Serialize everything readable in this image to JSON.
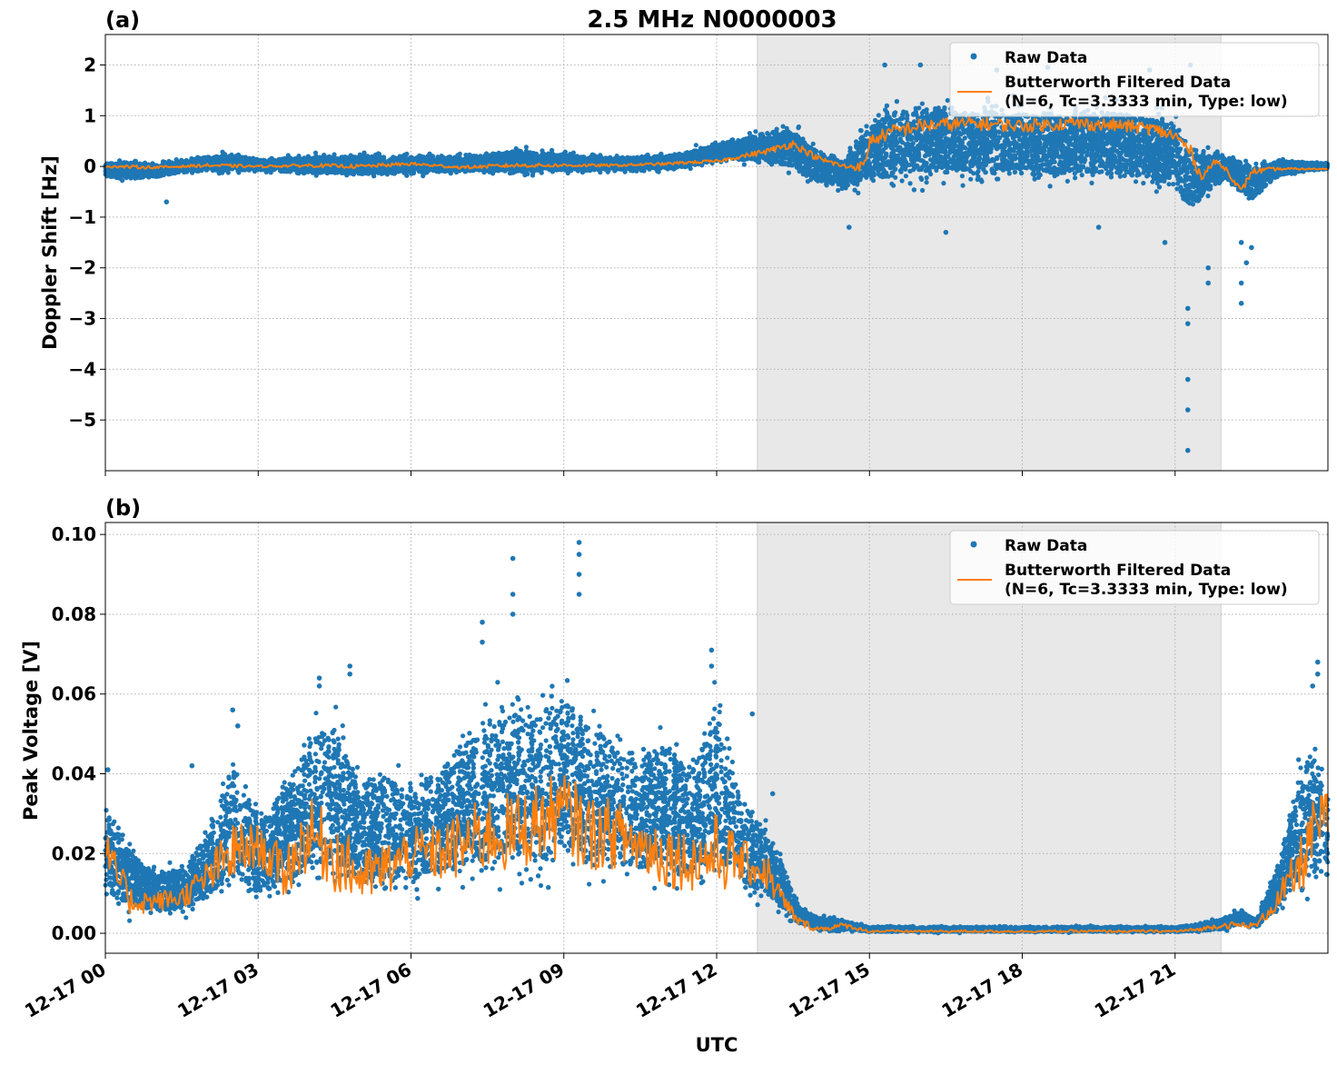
{
  "figure": {
    "title": "2.5 MHz N0000003",
    "xlabel": "UTC"
  },
  "colors": {
    "raw": "#1f77b4",
    "filtered": "#ff7f0e",
    "shade": "#e8e8e8",
    "grid": "#b0b0b0"
  },
  "chart_data": [
    {
      "type": "scatter",
      "panel_label": "(a)",
      "ylabel": "Doppler Shift [Hz]",
      "xlim_hours": [
        0,
        24
      ],
      "x_tick_hours": [
        0,
        3,
        6,
        9,
        12,
        15,
        18,
        21
      ],
      "x_tick_labels": [
        "12-17 00",
        "12-17 03",
        "12-17 06",
        "12-17 09",
        "12-17 12",
        "12-17 15",
        "12-17 18",
        "12-17 21"
      ],
      "ylim": [
        -6,
        2.6
      ],
      "y_ticks": [
        2,
        1,
        0,
        -1,
        -2,
        -3,
        -4,
        -5
      ],
      "y_tick_labels": [
        "2",
        "1",
        "0",
        "−1",
        "−2",
        "−3",
        "−4",
        "−5"
      ],
      "shaded_span_hours": [
        12.8,
        21.9
      ],
      "grid": true,
      "legend_position": "top-right",
      "legend": [
        "Raw Data",
        "Butterworth Filtered Data",
        "(N=6, Tc=3.3333 min, Type: low)"
      ],
      "series": [
        {
          "name": "Raw Data",
          "kind": "points",
          "x": [
            0.0,
            0.5,
            1.0,
            1.5,
            2.0,
            2.5,
            3.0,
            4.0,
            5.0,
            6.0,
            7.0,
            8.0,
            9.0,
            10.0,
            11.0,
            11.5,
            12.0,
            12.5,
            13.0,
            13.5,
            14.0,
            14.5,
            15.0,
            15.5,
            16.0,
            17.0,
            18.0,
            19.0,
            20.0,
            20.5,
            21.0,
            21.3,
            21.6,
            22.0,
            22.5,
            23.0,
            23.5,
            24.0
          ],
          "y_upper": [
            0.15,
            0.2,
            0.12,
            0.2,
            0.3,
            0.35,
            0.2,
            0.3,
            0.35,
            0.3,
            0.3,
            0.45,
            0.35,
            0.25,
            0.3,
            0.4,
            0.55,
            0.7,
            0.9,
            1.0,
            0.5,
            0.3,
            1.3,
            1.6,
            1.7,
            1.6,
            1.5,
            1.6,
            1.5,
            1.4,
            1.3,
            0.9,
            0.5,
            0.35,
            0.3,
            0.2,
            0.15,
            0.1
          ],
          "y_lower": [
            -0.25,
            -0.35,
            -0.3,
            -0.2,
            -0.2,
            -0.2,
            -0.15,
            -0.25,
            -0.3,
            -0.25,
            -0.2,
            -0.25,
            -0.2,
            -0.15,
            -0.15,
            -0.1,
            0.0,
            0.0,
            -0.15,
            -0.3,
            -0.5,
            -0.6,
            -0.7,
            -0.7,
            -0.6,
            -0.6,
            -0.65,
            -0.6,
            -0.6,
            -0.7,
            -0.8,
            -1.3,
            -0.8,
            -0.4,
            -0.9,
            -0.3,
            -0.15,
            -0.1
          ],
          "outliers": [
            [
              14.6,
              -1.2
            ],
            [
              16.5,
              -1.3
            ],
            [
              19.5,
              -1.2
            ],
            [
              20.8,
              -1.5
            ],
            [
              21.25,
              -5.6
            ],
            [
              21.25,
              -4.8
            ],
            [
              21.25,
              -4.2
            ],
            [
              21.25,
              -3.1
            ],
            [
              21.25,
              -2.8
            ],
            [
              21.65,
              -2.3
            ],
            [
              21.65,
              -2.0
            ],
            [
              22.3,
              -2.7
            ],
            [
              22.3,
              -2.3
            ],
            [
              22.4,
              -1.9
            ],
            [
              22.3,
              -1.5
            ],
            [
              22.5,
              -1.6
            ],
            [
              15.3,
              2.0
            ],
            [
              16.0,
              2.0
            ],
            [
              17.5,
              1.9
            ],
            [
              18.5,
              1.95
            ],
            [
              20.5,
              1.9
            ],
            [
              21.3,
              2.0
            ],
            [
              1.2,
              -0.7
            ]
          ]
        },
        {
          "name": "Butterworth Filtered Data",
          "kind": "line",
          "x": [
            0,
            1,
            2,
            3,
            4,
            5,
            6,
            7,
            8,
            9,
            10,
            11,
            11.5,
            12,
            12.5,
            13,
            13.5,
            14,
            14.5,
            14.9,
            15.0,
            15.5,
            16,
            17,
            18,
            19,
            20,
            20.5,
            21.0,
            21.3,
            21.5,
            21.8,
            22.0,
            22.3,
            22.5,
            23,
            24
          ],
          "y": [
            0.0,
            -0.02,
            0.02,
            0.0,
            0.02,
            0.0,
            0.05,
            -0.02,
            0.02,
            0.02,
            0.02,
            0.05,
            0.08,
            0.1,
            0.2,
            0.3,
            0.45,
            0.15,
            0.0,
            0.0,
            0.5,
            0.7,
            0.8,
            0.85,
            0.8,
            0.85,
            0.8,
            0.75,
            0.6,
            0.3,
            -0.2,
            0.1,
            -0.05,
            -0.5,
            -0.1,
            -0.05,
            -0.05
          ]
        }
      ]
    },
    {
      "type": "scatter",
      "panel_label": "(b)",
      "ylabel": "Peak Voltage [V]",
      "xlim_hours": [
        0,
        24
      ],
      "x_tick_hours": [
        0,
        3,
        6,
        9,
        12,
        15,
        18,
        21
      ],
      "x_tick_labels": [
        "12-17 00",
        "12-17 03",
        "12-17 06",
        "12-17 09",
        "12-17 12",
        "12-17 15",
        "12-17 18",
        "12-17 21"
      ],
      "ylim": [
        -0.005,
        0.103
      ],
      "y_ticks": [
        0.1,
        0.08,
        0.06,
        0.04,
        0.02,
        0.0
      ],
      "y_tick_labels": [
        "0.10",
        "0.08",
        "0.06",
        "0.04",
        "0.02",
        "0.00"
      ],
      "shaded_span_hours": [
        12.8,
        21.9
      ],
      "grid": true,
      "legend_position": "top-right",
      "legend": [
        "Raw Data",
        "Butterworth Filtered Data",
        "(N=6, Tc=3.3333 min, Type: low)"
      ],
      "series": [
        {
          "name": "Raw Data",
          "kind": "points",
          "x": [
            0.0,
            0.5,
            1.0,
            1.5,
            2.0,
            2.5,
            3.0,
            3.5,
            4.0,
            4.5,
            5.0,
            5.5,
            6.0,
            6.5,
            7.0,
            7.5,
            8.0,
            8.5,
            9.0,
            9.5,
            10.0,
            10.5,
            11.0,
            11.5,
            12.0,
            12.5,
            13.0,
            13.3,
            13.6,
            14.0,
            14.5,
            15.0,
            16.0,
            18.0,
            20.0,
            21.0,
            21.5,
            22.0,
            22.3,
            22.6,
            23.0,
            23.3,
            23.6,
            24.0
          ],
          "y_upper": [
            0.04,
            0.025,
            0.018,
            0.02,
            0.03,
            0.055,
            0.035,
            0.045,
            0.06,
            0.065,
            0.045,
            0.05,
            0.045,
            0.05,
            0.06,
            0.065,
            0.07,
            0.068,
            0.075,
            0.065,
            0.06,
            0.055,
            0.06,
            0.05,
            0.07,
            0.04,
            0.032,
            0.022,
            0.008,
            0.005,
            0.004,
            0.002,
            0.002,
            0.002,
            0.002,
            0.002,
            0.003,
            0.005,
            0.007,
            0.004,
            0.02,
            0.04,
            0.06,
            0.045
          ],
          "y_lower": [
            0.002,
            0.002,
            0.002,
            0.002,
            0.003,
            0.003,
            0.003,
            0.003,
            0.004,
            0.004,
            0.004,
            0.004,
            0.004,
            0.004,
            0.004,
            0.005,
            0.005,
            0.005,
            0.005,
            0.005,
            0.005,
            0.005,
            0.005,
            0.005,
            0.005,
            0.005,
            0.003,
            0.002,
            0.001,
            0.0,
            0.0,
            0.0,
            0.0,
            0.0,
            0.0,
            0.0,
            0.0,
            0.0,
            0.001,
            0.001,
            0.002,
            0.003,
            0.005,
            0.005
          ],
          "outliers": [
            [
              8.0,
              0.094
            ],
            [
              8.0,
              0.085
            ],
            [
              8.0,
              0.08
            ],
            [
              9.3,
              0.098
            ],
            [
              9.3,
              0.095
            ],
            [
              9.3,
              0.09
            ],
            [
              9.3,
              0.085
            ],
            [
              7.4,
              0.078
            ],
            [
              7.4,
              0.073
            ],
            [
              11.9,
              0.071
            ],
            [
              11.9,
              0.067
            ],
            [
              4.2,
              0.064
            ],
            [
              4.2,
              0.062
            ],
            [
              4.8,
              0.067
            ],
            [
              4.8,
              0.065
            ],
            [
              2.5,
              0.056
            ],
            [
              2.6,
              0.052
            ],
            [
              1.7,
              0.042
            ],
            [
              12.7,
              0.055
            ],
            [
              13.1,
              0.035
            ],
            [
              23.8,
              0.068
            ],
            [
              23.8,
              0.065
            ],
            [
              23.7,
              0.062
            ],
            [
              0.05,
              0.041
            ]
          ]
        },
        {
          "name": "Butterworth Filtered Data",
          "kind": "line",
          "x": [
            0,
            0.5,
            1,
            1.5,
            2,
            2.5,
            3,
            3.5,
            4,
            4.5,
            5,
            5.5,
            6,
            6.5,
            7,
            7.5,
            8,
            8.5,
            9,
            9.5,
            10,
            10.5,
            11,
            11.5,
            12,
            12.5,
            13,
            13.3,
            13.6,
            14,
            14.5,
            15,
            16,
            18,
            20,
            21,
            21.5,
            21.9,
            22.3,
            22.6,
            23,
            23.4,
            23.7,
            24
          ],
          "y": [
            0.02,
            0.008,
            0.008,
            0.009,
            0.014,
            0.02,
            0.022,
            0.015,
            0.025,
            0.02,
            0.014,
            0.016,
            0.02,
            0.02,
            0.022,
            0.025,
            0.025,
            0.028,
            0.03,
            0.025,
            0.025,
            0.022,
            0.02,
            0.018,
            0.02,
            0.018,
            0.015,
            0.008,
            0.003,
            0.001,
            0.002,
            0.0005,
            0.0005,
            0.0005,
            0.0005,
            0.0005,
            0.001,
            0.002,
            0.002,
            0.002,
            0.008,
            0.015,
            0.025,
            0.03
          ]
        }
      ]
    }
  ]
}
